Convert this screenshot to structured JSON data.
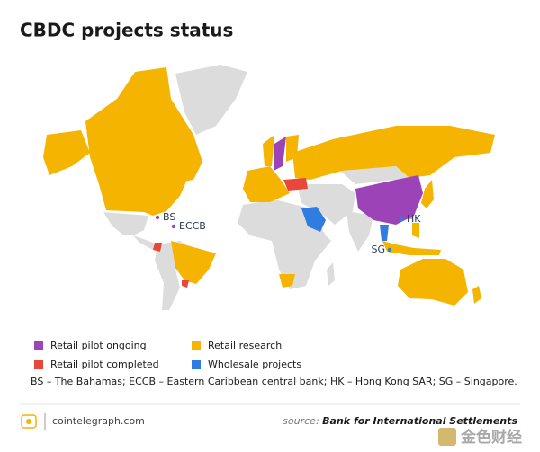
{
  "title": "CBDC projects status",
  "map_labels": [
    "BS",
    "ECCB",
    "HK",
    "SG"
  ],
  "legend": [
    {
      "label": "Retail pilot ongoing",
      "color": "#9c43b8"
    },
    {
      "label": "Retail research",
      "color": "#f4b400"
    },
    {
      "label": "Retail pilot completed",
      "color": "#e8473a"
    },
    {
      "label": "Wholesale projects",
      "color": "#2f7de1"
    }
  ],
  "footnote": "BS – The Bahamas; ECCB – Eastern Caribbean central bank; HK – Hong Kong SAR; SG – Singapore.",
  "footer": {
    "site": "cointelegraph.com",
    "source_prefix": "source:",
    "source": "Bank for International Settlements",
    "watermark": "金色财经"
  }
}
